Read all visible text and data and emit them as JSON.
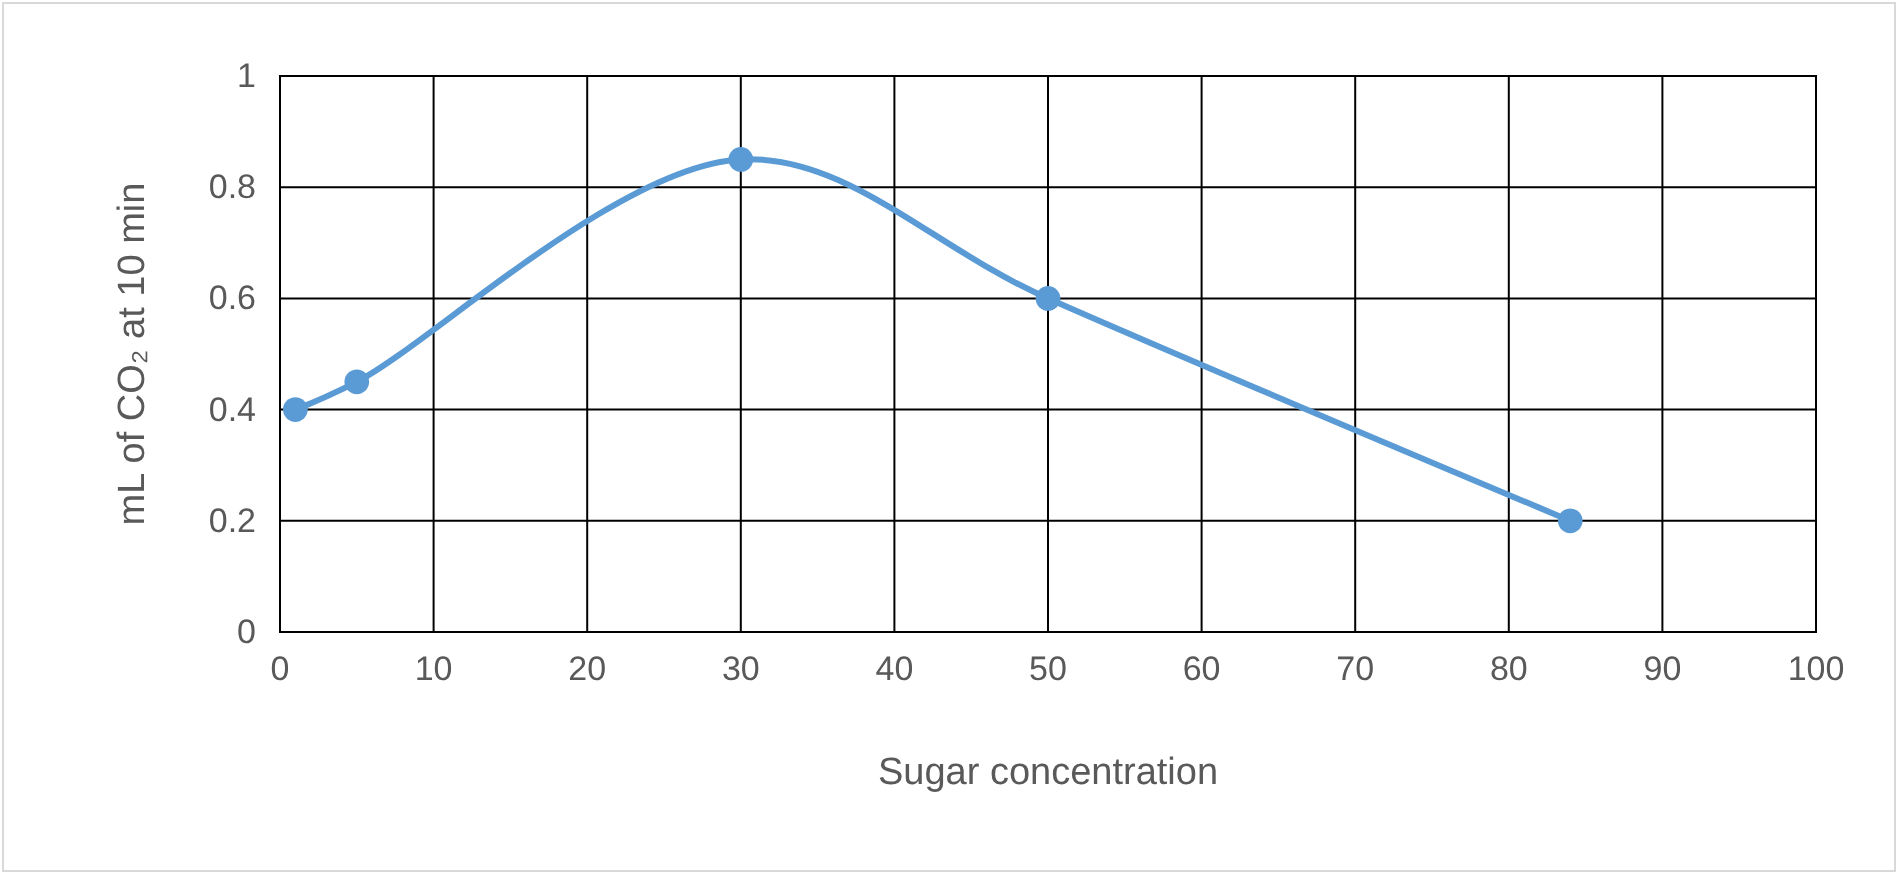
{
  "chart_data": {
    "type": "line",
    "xlabel": "Sugar concentration",
    "ylabel": "mL of CO₂ at 10 min",
    "series": [
      {
        "color": "#5b9bd5",
        "x": [
          1,
          5,
          30,
          50,
          84
        ],
        "values": [
          0.4,
          0.45,
          0.85,
          0.6,
          0.2
        ]
      }
    ],
    "xlim": [
      0,
      100
    ],
    "xticks": [
      0,
      10,
      20,
      30,
      40,
      50,
      60,
      70,
      80,
      90,
      100
    ],
    "ylim": [
      0,
      1
    ],
    "yticks": [
      0,
      0.2,
      0.4,
      0.6,
      0.8,
      1
    ],
    "grid": true,
    "marker": "circle",
    "line_style": "solid"
  }
}
